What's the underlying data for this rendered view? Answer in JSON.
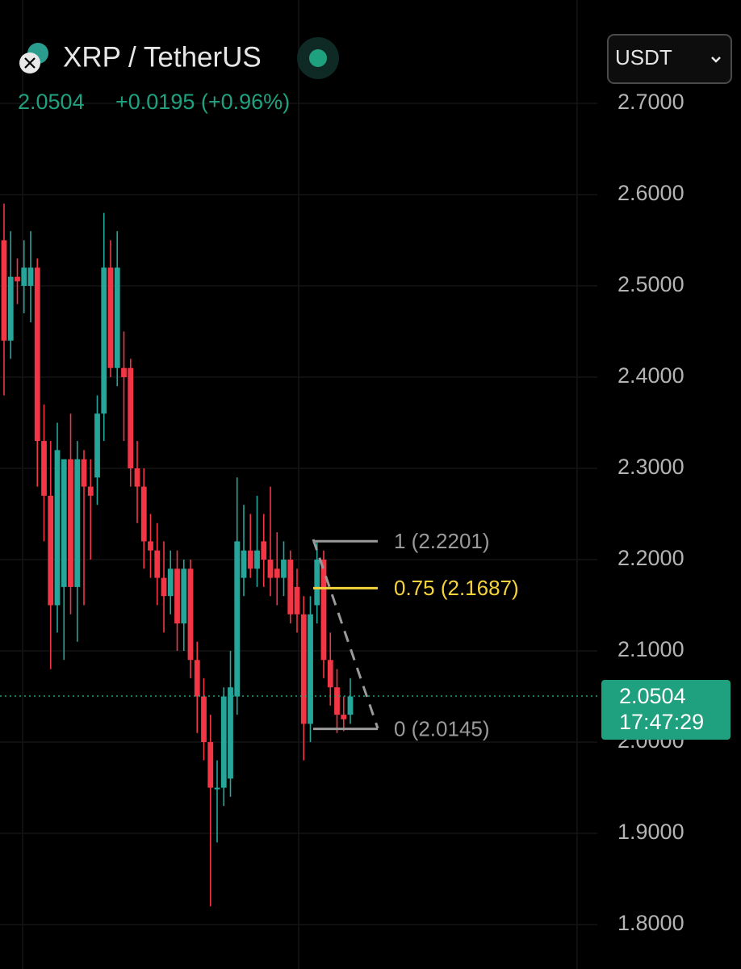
{
  "header": {
    "symbol": "XRP / TetherUS",
    "price": "2.0504",
    "change": "+0.0195 (+0.96%)",
    "currency": "USDT"
  },
  "chart_data": {
    "type": "candlestick",
    "up_color": "#26a69a",
    "down_color": "#f23645",
    "open": [
      2.55,
      2.44,
      2.51,
      2.5,
      2.5,
      2.52,
      2.33,
      2.27,
      2.15,
      2.17,
      2.31,
      2.17,
      2.31,
      2.28,
      2.29,
      2.36,
      2.52,
      2.41,
      2.41,
      2.41,
      2.3,
      2.28,
      2.22,
      2.21,
      2.18,
      2.16,
      2.19,
      2.13,
      2.19,
      2.09,
      2.05,
      2.0,
      1.95,
      1.95,
      1.96,
      2.05,
      2.18,
      2.21,
      2.19,
      2.22,
      2.2,
      2.19,
      2.18,
      2.2,
      2.17,
      2.14,
      2.02,
      2.15,
      2.2,
      2.09,
      2.06,
      2.03,
      2.03
    ],
    "high": [
      2.59,
      2.56,
      2.53,
      2.55,
      2.56,
      2.53,
      2.37,
      2.33,
      2.35,
      2.3,
      2.36,
      2.33,
      2.32,
      2.31,
      2.38,
      2.58,
      2.55,
      2.56,
      2.45,
      2.42,
      2.33,
      2.3,
      2.25,
      2.24,
      2.22,
      2.21,
      2.21,
      2.2,
      2.2,
      2.11,
      2.07,
      2.03,
      1.98,
      2.06,
      2.1,
      2.29,
      2.26,
      2.25,
      2.27,
      2.25,
      2.28,
      2.23,
      2.22,
      2.21,
      2.19,
      2.16,
      2.16,
      2.22,
      2.21,
      2.12,
      2.08,
      2.05,
      2.07
    ],
    "low": [
      2.38,
      2.42,
      2.48,
      2.47,
      2.46,
      2.28,
      2.22,
      2.08,
      2.12,
      2.09,
      2.14,
      2.11,
      2.15,
      2.2,
      2.26,
      2.33,
      2.4,
      2.39,
      2.33,
      2.28,
      2.24,
      2.19,
      2.18,
      2.15,
      2.12,
      2.14,
      2.1,
      2.1,
      2.07,
      2.01,
      1.98,
      1.82,
      1.89,
      1.93,
      1.94,
      2.03,
      2.16,
      2.18,
      2.17,
      2.17,
      2.16,
      2.15,
      2.16,
      2.13,
      2.12,
      1.98,
      2.0,
      2.13,
      2.07,
      2.04,
      2.01,
      2.012,
      2.02
    ],
    "close": [
      2.44,
      2.51,
      2.505,
      2.52,
      2.52,
      2.33,
      2.27,
      2.15,
      2.32,
      2.31,
      2.17,
      2.31,
      2.28,
      2.27,
      2.36,
      2.52,
      2.41,
      2.52,
      2.4,
      2.3,
      2.28,
      2.22,
      2.21,
      2.18,
      2.16,
      2.19,
      2.13,
      2.19,
      2.09,
      2.05,
      2.0,
      1.95,
      1.95,
      2.05,
      2.06,
      2.22,
      2.21,
      2.19,
      2.21,
      2.2,
      2.18,
      2.18,
      2.2,
      2.14,
      2.14,
      2.02,
      2.14,
      2.2,
      2.09,
      2.06,
      2.03,
      2.025,
      2.05
    ],
    "ylim": [
      1.75,
      2.8
    ],
    "yticks": [
      {
        "value": 1.8,
        "label": "1.8000"
      },
      {
        "value": 1.9,
        "label": "1.9000"
      },
      {
        "value": 2.0,
        "label": "2.0000"
      },
      {
        "value": 2.1,
        "label": "2.1000"
      },
      {
        "value": 2.2,
        "label": "2.2000"
      },
      {
        "value": 2.3,
        "label": "2.3000"
      },
      {
        "value": 2.4,
        "label": "2.4000"
      },
      {
        "value": 2.5,
        "label": "2.5000"
      },
      {
        "value": 2.6,
        "label": "2.6000"
      },
      {
        "value": 2.7,
        "label": "2.7000"
      }
    ],
    "grid": true,
    "last_price": {
      "value": 2.0504,
      "label": "2.0504",
      "countdown": "17:47:29",
      "color": "#1fa17f"
    },
    "fib_levels": [
      {
        "value": 2.2201,
        "label": "1 (2.2201)",
        "color": "#9a9a9a"
      },
      {
        "value": 2.1687,
        "label": "0.75 (2.1687)",
        "color": "#f5d33b"
      },
      {
        "value": 2.0145,
        "label": "0 (2.0145)",
        "color": "#9a9a9a"
      }
    ]
  }
}
